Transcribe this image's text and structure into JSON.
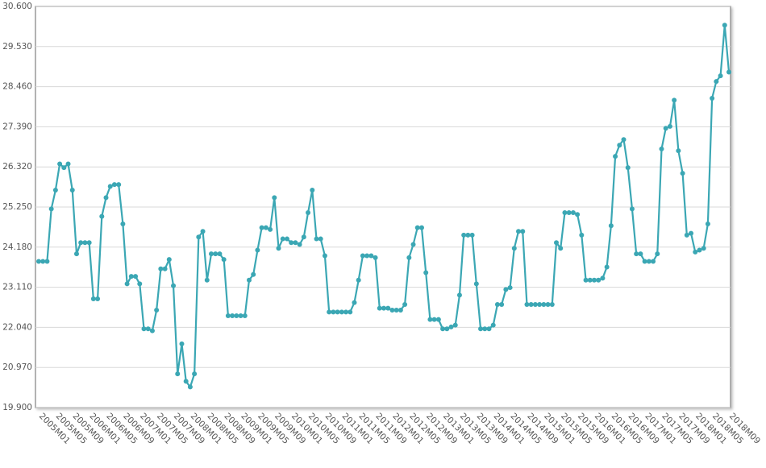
{
  "chart_data": {
    "type": "line",
    "categories": [
      "2005M01",
      null,
      null,
      null,
      "2005M05",
      null,
      null,
      null,
      "2005M09",
      null,
      null,
      null,
      "2006M01",
      null,
      null,
      null,
      "2006M05",
      null,
      null,
      null,
      "2006M09",
      null,
      null,
      null,
      "2007M01",
      null,
      null,
      null,
      "2007M05",
      null,
      null,
      null,
      "2007M09",
      null,
      null,
      null,
      "2008M01",
      null,
      null,
      null,
      "2008M05",
      null,
      null,
      null,
      "2008M09",
      null,
      null,
      null,
      "2009M01",
      null,
      null,
      null,
      "2009M05",
      null,
      null,
      null,
      "2009M09",
      null,
      null,
      null,
      "2010M01",
      null,
      null,
      null,
      "2010M05",
      null,
      null,
      null,
      "2010M09",
      null,
      null,
      null,
      "2011M01",
      null,
      null,
      null,
      "2011M05",
      null,
      null,
      null,
      "2011M09",
      null,
      null,
      null,
      "2012M01",
      null,
      null,
      null,
      "2012M05",
      null,
      null,
      null,
      "2012M09",
      null,
      null,
      null,
      "2013M01",
      null,
      null,
      null,
      "2013M05",
      null,
      null,
      null,
      "2013M09",
      null,
      null,
      null,
      "2014M01",
      null,
      null,
      null,
      "2014M05",
      null,
      null,
      null,
      "2014M09",
      null,
      null,
      null,
      "2015M01",
      null,
      null,
      null,
      "2015M05",
      null,
      null,
      null,
      "2015M09",
      null,
      null,
      null,
      "2016M01",
      null,
      null,
      null,
      "2016M05",
      null,
      null,
      null,
      "2016M09",
      null,
      null,
      null,
      "2017M01",
      null,
      null,
      null,
      "2017M05",
      null,
      null,
      null,
      "2017M09",
      null,
      null,
      null,
      "2018M01",
      null,
      null,
      null,
      "2018M05",
      null,
      null,
      null,
      "2018M09"
    ],
    "series": [
      {
        "color": "#3ba7b4",
        "values": [
          23.8,
          23.8,
          23.8,
          25.2,
          25.7,
          26.4,
          26.3,
          26.4,
          25.7,
          24.0,
          24.3,
          24.3,
          24.3,
          22.8,
          22.8,
          25.0,
          25.5,
          25.8,
          25.85,
          25.85,
          24.8,
          23.2,
          23.4,
          23.4,
          23.2,
          22.0,
          22.0,
          21.95,
          22.5,
          23.6,
          23.6,
          23.85,
          23.15,
          20.8,
          21.6,
          20.6,
          20.45,
          20.8,
          24.45,
          24.6,
          23.3,
          24.0,
          24.0,
          24.0,
          23.85,
          22.35,
          22.35,
          22.35,
          22.35,
          22.35,
          23.3,
          23.45,
          24.1,
          24.7,
          24.7,
          24.65,
          25.5,
          24.15,
          24.4,
          24.4,
          24.3,
          24.3,
          24.25,
          24.45,
          25.1,
          25.7,
          24.4,
          24.4,
          23.95,
          22.45,
          22.45,
          22.45,
          22.45,
          22.45,
          22.45,
          22.7,
          23.3,
          23.95,
          23.95,
          23.95,
          23.9,
          22.55,
          22.55,
          22.55,
          22.5,
          22.5,
          22.5,
          22.65,
          23.9,
          24.25,
          24.7,
          24.7,
          23.5,
          22.25,
          22.25,
          22.25,
          22.0,
          22.0,
          22.05,
          22.1,
          22.9,
          24.5,
          24.5,
          24.5,
          23.2,
          22.0,
          22.0,
          22.0,
          22.1,
          22.65,
          22.65,
          23.05,
          23.1,
          24.15,
          24.6,
          24.6,
          22.65,
          22.65,
          22.65,
          22.65,
          22.65,
          22.65,
          22.65,
          24.3,
          24.15,
          25.1,
          25.1,
          25.1,
          25.05,
          24.5,
          23.3,
          23.3,
          23.3,
          23.3,
          23.35,
          23.65,
          24.75,
          26.6,
          26.9,
          27.05,
          26.3,
          25.2,
          24.0,
          24.0,
          23.8,
          23.8,
          23.8,
          24.0,
          26.8,
          27.35,
          27.4,
          28.1,
          26.75,
          26.15,
          24.5,
          24.55,
          24.05,
          24.1,
          24.15,
          24.8,
          28.15,
          28.6,
          28.75,
          30.1,
          28.85
        ]
      }
    ],
    "ylim": [
      19.9,
      30.6
    ],
    "yticks": [
      {
        "value": 19.9,
        "label": "19.900"
      },
      {
        "value": 20.97,
        "label": "20.970"
      },
      {
        "value": 22.04,
        "label": "22.040"
      },
      {
        "value": 23.11,
        "label": "23.110"
      },
      {
        "value": 24.18,
        "label": "24.180"
      },
      {
        "value": 25.25,
        "label": "25.250"
      },
      {
        "value": 26.32,
        "label": "26.320"
      },
      {
        "value": 27.39,
        "label": "27.390"
      },
      {
        "value": 28.46,
        "label": "28.460"
      },
      {
        "value": 29.53,
        "label": "29.530"
      },
      {
        "value": 30.6,
        "label": "30.600"
      }
    ],
    "grid": true
  }
}
